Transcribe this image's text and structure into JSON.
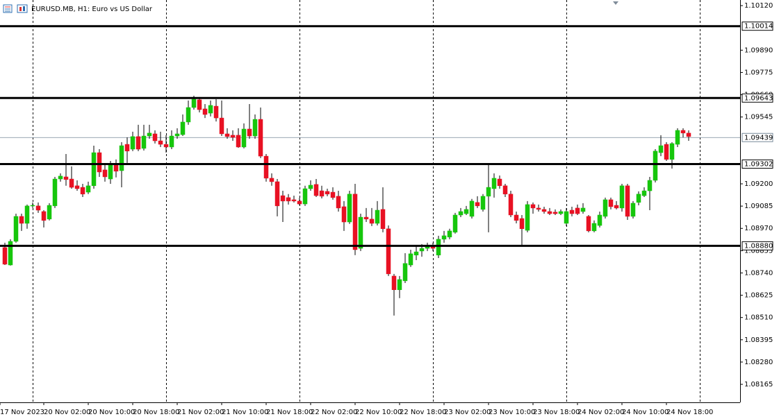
{
  "chart_data": {
    "type": "candlestick",
    "title": "EURUSD.MB, H1:  Euro vs US Dollar",
    "x": [
      1,
      2,
      3,
      4,
      5,
      6,
      7,
      8,
      9,
      10,
      11,
      12,
      13,
      14,
      15,
      16,
      17,
      18,
      19,
      20,
      21,
      22,
      23,
      24,
      25,
      26,
      27,
      28,
      29,
      30,
      31,
      32,
      33,
      34,
      35,
      36,
      37,
      38,
      39,
      40,
      41,
      42,
      43,
      44,
      45,
      46,
      47,
      48,
      49,
      50,
      51,
      52,
      53,
      54,
      55,
      56,
      57,
      58,
      59,
      60,
      61,
      62,
      63,
      64,
      65,
      66,
      67,
      68,
      69,
      70,
      71,
      72,
      73,
      74,
      75,
      76,
      77,
      78,
      79,
      80,
      81,
      82,
      83,
      84,
      85,
      86,
      87,
      88,
      89,
      90,
      91,
      92,
      93,
      94,
      95,
      96,
      97,
      98,
      99,
      100,
      101,
      102,
      103,
      104,
      105,
      106,
      107,
      108,
      109,
      110,
      111,
      112,
      113,
      114,
      115,
      116,
      117,
      118,
      119,
      120,
      121,
      122,
      123,
      124
    ],
    "open": [
      1.08871,
      1.08781,
      1.08903,
      1.09032,
      1.08996,
      1.09086,
      1.09086,
      1.09057,
      1.09018,
      1.09086,
      1.09225,
      1.09236,
      1.09225,
      1.0919,
      1.09182,
      1.09157,
      1.0919,
      1.09361,
      1.09272,
      1.09225,
      1.09301,
      1.09268,
      1.09404,
      1.09379,
      1.09444,
      1.09383,
      1.09447,
      1.09458,
      1.09422,
      1.09404,
      1.0939,
      1.09447,
      1.09454,
      1.09519,
      1.09594,
      1.09634,
      1.09587,
      1.09565,
      1.09601,
      1.0954,
      1.09458,
      1.09451,
      1.09451,
      1.0939,
      1.09483,
      1.09447,
      1.09533,
      1.09343,
      1.09229,
      1.09211,
      1.09139,
      1.09129,
      1.09118,
      1.09111,
      1.09096,
      1.09175,
      1.09197,
      1.09164,
      1.09161,
      1.09157,
      1.09136,
      1.09082,
      1.09003,
      1.09147,
      1.08867,
      1.09028,
      1.09018,
      1.08996,
      1.09068,
      1.08968,
      1.08724,
      1.08653,
      1.08699,
      1.08781,
      1.08832,
      1.08853,
      1.08867,
      1.08878,
      1.08832,
      1.08914,
      1.08925,
      1.0895,
      1.09039,
      1.09046,
      1.09032,
      1.09104,
      1.09068,
      1.09136,
      1.09175,
      1.09225,
      1.0919,
      1.09147,
      1.09039,
      1.09021,
      1.0896,
      1.09093,
      1.09075,
      1.09068,
      1.09057,
      1.09054,
      1.09046,
      1.08996,
      1.09064,
      1.09075,
      1.09057,
      1.09032,
      1.08957,
      1.08985,
      1.09032,
      1.09118,
      1.09089,
      1.09075,
      1.0919,
      1.09032,
      1.09104,
      1.09139,
      1.09164,
      1.09218,
      1.09361,
      1.09404,
      1.09326,
      1.09404,
      1.09476,
      1.09462
    ],
    "high": [
      1.08896,
      1.08914,
      1.09046,
      1.09046,
      1.09093,
      1.09104,
      1.09104,
      1.09064,
      1.091,
      1.09236,
      1.09254,
      1.09354,
      1.0929,
      1.09218,
      1.092,
      1.09211,
      1.09397,
      1.09379,
      1.09297,
      1.09318,
      1.09326,
      1.09415,
      1.0944,
      1.09469,
      1.09505,
      1.09505,
      1.09505,
      1.09476,
      1.09469,
      1.09451,
      1.09476,
      1.09487,
      1.09558,
      1.0963,
      1.09655,
      1.09648,
      1.09612,
      1.0963,
      1.09637,
      1.0963,
      1.09487,
      1.09476,
      1.09487,
      1.09512,
      1.09612,
      1.09558,
      1.09594,
      1.09354,
      1.09254,
      1.09225,
      1.09164,
      1.09147,
      1.09139,
      1.09129,
      1.0919,
      1.09218,
      1.09225,
      1.0919,
      1.09175,
      1.09182,
      1.09164,
      1.09111,
      1.09164,
      1.092,
      1.09046,
      1.09075,
      1.09075,
      1.09111,
      1.09182,
      1.08985,
      1.08735,
      1.08724,
      1.08842,
      1.0886,
      1.08878,
      1.08889,
      1.08896,
      1.08896,
      1.08932,
      1.08957,
      1.08968,
      1.0905,
      1.09075,
      1.09086,
      1.09122,
      1.09136,
      1.09147,
      1.09297,
      1.09254,
      1.09243,
      1.092,
      1.09164,
      1.09057,
      1.09039,
      1.09111,
      1.09104,
      1.09093,
      1.09082,
      1.09075,
      1.09068,
      1.09068,
      1.09075,
      1.09082,
      1.09093,
      1.091,
      1.09039,
      1.09011,
      1.09057,
      1.09129,
      1.09129,
      1.09111,
      1.092,
      1.092,
      1.09111,
      1.09161,
      1.09182,
      1.09236,
      1.09379,
      1.09451,
      1.09415,
      1.09415,
      1.09487,
      1.09487,
      1.09476
    ],
    "low": [
      1.08781,
      1.08778,
      1.08896,
      1.08957,
      1.08968,
      1.09075,
      1.0905,
      1.08975,
      1.09011,
      1.09075,
      1.09211,
      1.0919,
      1.09175,
      1.09164,
      1.09132,
      1.09147,
      1.09175,
      1.09236,
      1.09211,
      1.092,
      1.09233,
      1.09182,
      1.09308,
      1.09369,
      1.09369,
      1.09372,
      1.09433,
      1.09408,
      1.0939,
      1.09361,
      1.09379,
      1.09433,
      1.09447,
      1.09505,
      1.09583,
      1.09569,
      1.0954,
      1.09548,
      1.09522,
      1.09447,
      1.09433,
      1.09422,
      1.09386,
      1.09383,
      1.09433,
      1.09433,
      1.09333,
      1.09211,
      1.0919,
      1.09032,
      1.09003,
      1.09093,
      1.09104,
      1.09089,
      1.09086,
      1.09164,
      1.09132,
      1.09125,
      1.09136,
      1.09118,
      1.09057,
      1.08957,
      1.08993,
      1.08832,
      1.08853,
      1.09003,
      1.08982,
      1.08985,
      1.0895,
      1.08724,
      1.0852,
      1.0861,
      1.08688,
      1.08771,
      1.08806,
      1.08824,
      1.08853,
      1.08853,
      1.08817,
      1.08896,
      1.08914,
      1.08943,
      1.09028,
      1.09039,
      1.09021,
      1.09075,
      1.09057,
      1.0895,
      1.09129,
      1.09175,
      1.09132,
      1.09028,
      1.08996,
      1.08878,
      1.0895,
      1.09046,
      1.09057,
      1.09046,
      1.09039,
      1.09039,
      1.09039,
      1.08982,
      1.09032,
      1.09039,
      1.09046,
      1.0895,
      1.0895,
      1.08975,
      1.09021,
      1.09068,
      1.09068,
      1.09057,
      1.09014,
      1.09021,
      1.09089,
      1.09132,
      1.09064,
      1.09207,
      1.09343,
      1.09318,
      1.09279,
      1.0939,
      1.0944,
      1.09422
    ],
    "close": [
      1.08785,
      1.08903,
      1.09032,
      1.08996,
      1.09086,
      1.09089,
      1.09064,
      1.09011,
      1.09089,
      1.09225,
      1.0924,
      1.09222,
      1.09182,
      1.09175,
      1.09147,
      1.0919,
      1.09361,
      1.09261,
      1.09236,
      1.09301,
      1.09265,
      1.09397,
      1.09369,
      1.09444,
      1.09379,
      1.09447,
      1.09462,
      1.09422,
      1.09404,
      1.0939,
      1.09447,
      1.09458,
      1.09519,
      1.09594,
      1.09637,
      1.09583,
      1.09558,
      1.09605,
      1.0954,
      1.09458,
      1.09444,
      1.0944,
      1.0939,
      1.09483,
      1.09447,
      1.09533,
      1.09343,
      1.09229,
      1.09211,
      1.09086,
      1.09111,
      1.09111,
      1.09111,
      1.09096,
      1.09175,
      1.09193,
      1.09139,
      1.09136,
      1.09147,
      1.09129,
      1.09075,
      1.09003,
      1.09147,
      1.0886,
      1.09028,
      1.09018,
      1.08996,
      1.09064,
      1.08968,
      1.08735,
      1.08653,
      1.08706,
      1.08789,
      1.08839,
      1.08849,
      1.08867,
      1.08878,
      1.08867,
      1.08914,
      1.08932,
      1.08957,
      1.09039,
      1.09057,
      1.09068,
      1.09111,
      1.09086,
      1.09136,
      1.09182,
      1.09229,
      1.0919,
      1.09147,
      1.09039,
      1.09011,
      1.08968,
      1.09093,
      1.09075,
      1.09068,
      1.09057,
      1.09046,
      1.09046,
      1.09057,
      1.09057,
      1.09046,
      1.09046,
      1.09075,
      1.08957,
      1.08996,
      1.09039,
      1.09118,
      1.09082,
      1.09075,
      1.0919,
      1.09032,
      1.091,
      1.09147,
      1.09164,
      1.09218,
      1.09369,
      1.09397,
      1.09326,
      1.09408,
      1.09476,
      1.09462,
      1.09444
    ],
    "up_color": "#16c60c",
    "down_color": "#e81123",
    "wick_color": "#000000",
    "xlim": [
      0.125,
      133.25
    ],
    "xticks": [
      {
        "value": 0.125,
        "label": "17 Nov 2023"
      },
      {
        "value": 8,
        "label": "20 Nov 02:00"
      },
      {
        "value": 16,
        "label": "20 Nov 10:00"
      },
      {
        "value": 24,
        "label": "20 Nov 18:00"
      },
      {
        "value": 32,
        "label": "21 Nov 02:00"
      },
      {
        "value": 40,
        "label": "21 Nov 10:00"
      },
      {
        "value": 48,
        "label": "21 Nov 18:00"
      },
      {
        "value": 56,
        "label": "22 Nov 02:00"
      },
      {
        "value": 64,
        "label": "22 Nov 10:00"
      },
      {
        "value": 72,
        "label": "22 Nov 18:00"
      },
      {
        "value": 80,
        "label": "23 Nov 02:00"
      },
      {
        "value": 88,
        "label": "23 Nov 10:00"
      },
      {
        "value": 96,
        "label": "23 Nov 18:00"
      },
      {
        "value": 104,
        "label": "24 Nov 02:00"
      },
      {
        "value": 112,
        "label": "24 Nov 10:00"
      },
      {
        "value": 120,
        "label": "24 Nov 18:00"
      }
    ],
    "period_separators": [
      6,
      30,
      54,
      78,
      102,
      126
    ],
    "ylim": [
      1.08072,
      1.10149
    ],
    "yticks": [
      {
        "value": 1.1012,
        "label": "1.10120"
      },
      {
        "value": 1.0989,
        "label": "1.09890"
      },
      {
        "value": 1.09775,
        "label": "1.09775"
      },
      {
        "value": 1.0966,
        "label": "1.09660"
      },
      {
        "value": 1.09545,
        "label": "1.09545"
      },
      {
        "value": 1.092,
        "label": "1.09200"
      },
      {
        "value": 1.09085,
        "label": "1.09085"
      },
      {
        "value": 1.0897,
        "label": "1.08970"
      },
      {
        "value": 1.08855,
        "label": "1.08855"
      },
      {
        "value": 1.0874,
        "label": "1.08740"
      },
      {
        "value": 1.08625,
        "label": "1.08625"
      },
      {
        "value": 1.0851,
        "label": "1.08510"
      },
      {
        "value": 1.08395,
        "label": "1.08395"
      },
      {
        "value": 1.0828,
        "label": "1.08280"
      },
      {
        "value": 1.08165,
        "label": "1.08165"
      }
    ],
    "levels": [
      {
        "value": 1.10014,
        "label": "1.10014"
      },
      {
        "value": 1.09643,
        "label": "1.09643"
      },
      {
        "value": 1.09302,
        "label": "1.09302"
      },
      {
        "value": 1.0888,
        "label": "1.08880"
      }
    ],
    "bid": {
      "value": 1.09439,
      "label": "1.09439"
    }
  }
}
